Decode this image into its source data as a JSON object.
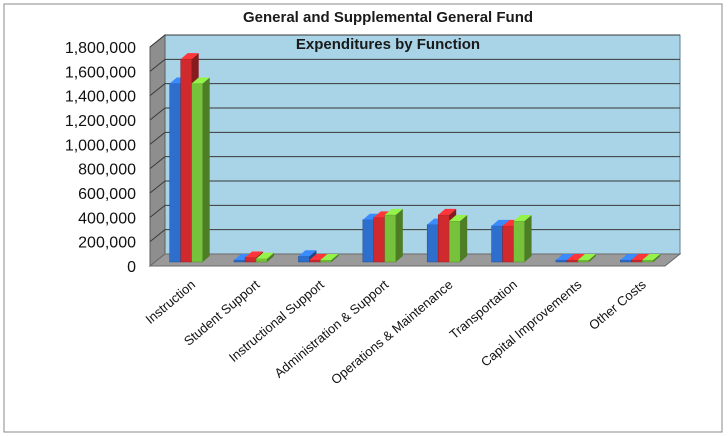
{
  "chart_data": {
    "type": "bar",
    "title": "General and Supplemental General Fund",
    "subtitle": "Expenditures by Function",
    "categories": [
      "Instruction",
      "Student Support",
      "Instructional Support",
      "Administration & Support",
      "Operations & Maintenance",
      "Transportation",
      "Capital Improvements",
      "Other Costs"
    ],
    "series": [
      {
        "values": [
          1500000,
          30000,
          80000,
          380000,
          340000,
          330000,
          15000,
          20000
        ]
      },
      {
        "values": [
          1700000,
          70000,
          40000,
          400000,
          420000,
          330000,
          20000,
          25000
        ]
      },
      {
        "values": [
          1500000,
          60000,
          30000,
          420000,
          370000,
          370000,
          20000,
          20000
        ]
      }
    ],
    "series_colors": [
      "#2e6fce",
      "#d12a2e",
      "#76c23a"
    ],
    "ylim": [
      0,
      1800000
    ],
    "yticks": [
      "0",
      "200,000",
      "400,000",
      "600,000",
      "800,000",
      "1,000,000",
      "1,200,000",
      "1,400,000",
      "1,600,000",
      "1,800,000"
    ],
    "grid": true,
    "legend": "none",
    "plot_background": "#a9d3e6"
  }
}
